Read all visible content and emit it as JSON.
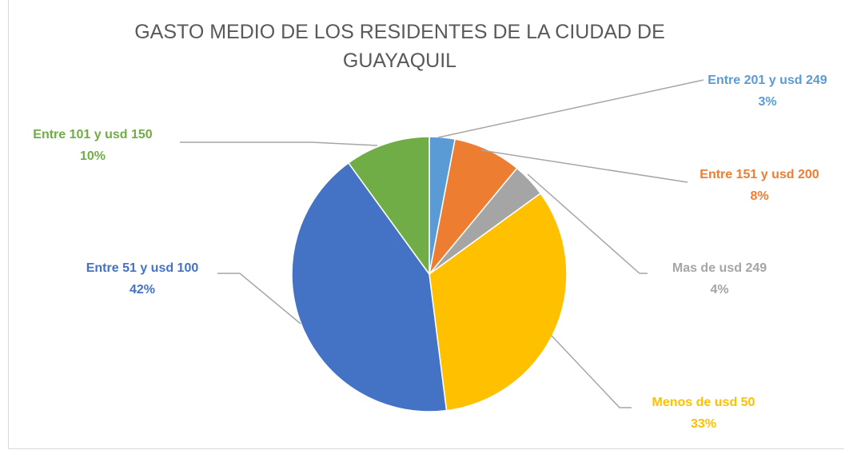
{
  "chart_data": {
    "type": "pie",
    "title": "GASTO MEDIO DE LOS RESIDENTES DE LA CIUDAD DE GUAYAQUIL",
    "categories": [
      "Entre 201 y usd 249",
      "Entre 151 y usd 200",
      "Mas de usd 249",
      "Menos de usd 50",
      "Entre 51 y usd 100",
      "Entre 101 y usd 150"
    ],
    "values": [
      3,
      8,
      4,
      33,
      42,
      10
    ],
    "value_labels": [
      "3%",
      "8%",
      "4%",
      "33%",
      "42%",
      "10%"
    ],
    "colors": [
      "#5b9bd5",
      "#ed7d31",
      "#a5a5a5",
      "#ffc000",
      "#4472c4",
      "#70ad47"
    ]
  }
}
